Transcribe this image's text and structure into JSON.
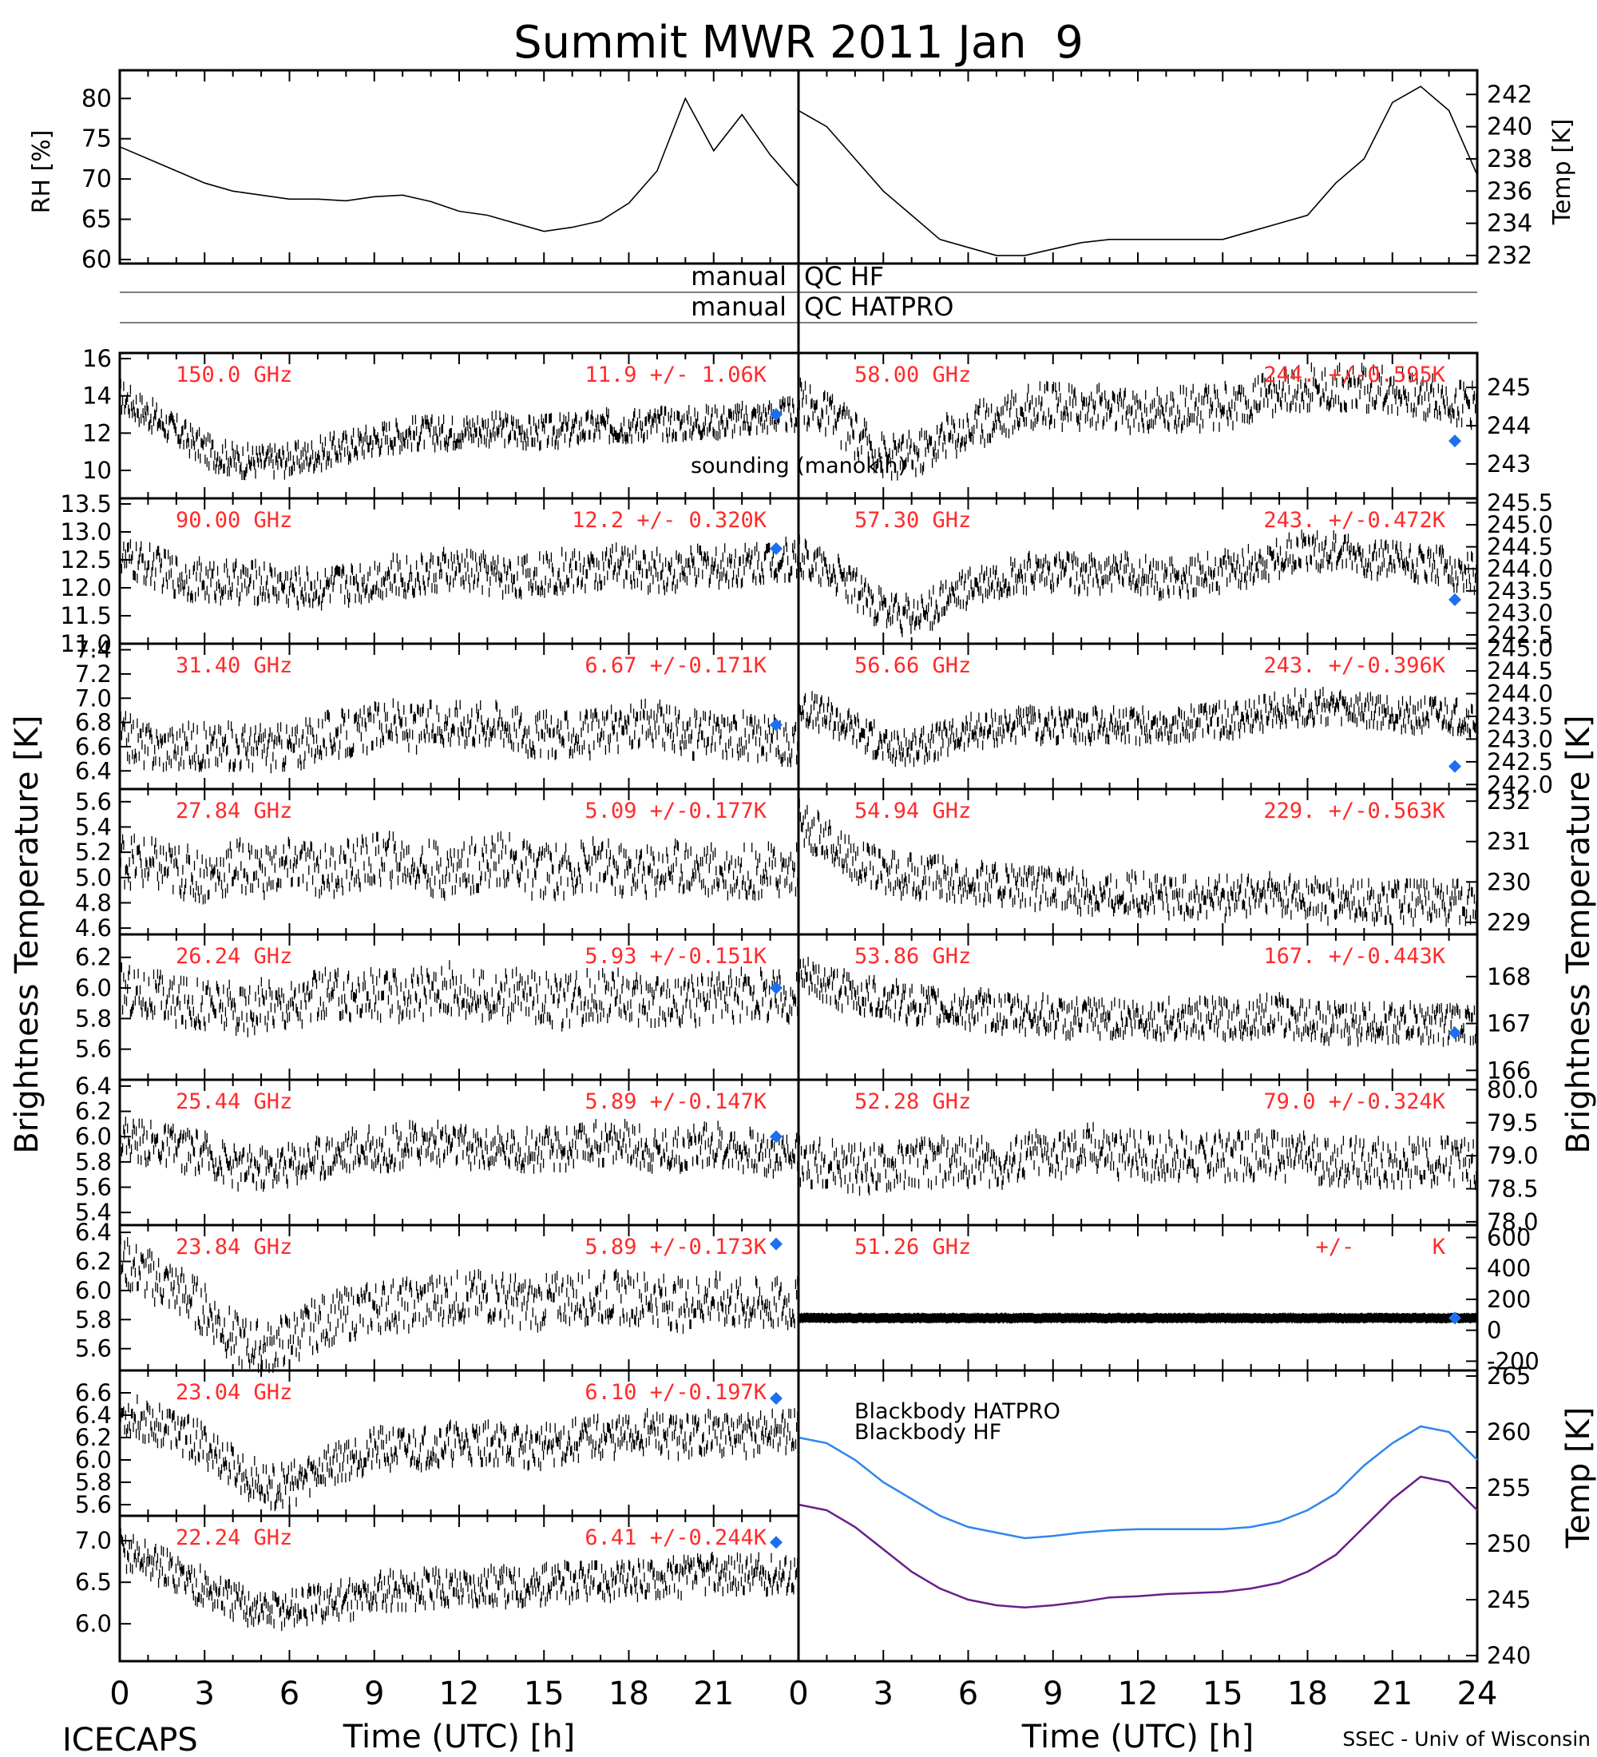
{
  "title": "Summit MWR 2011 Jan  9",
  "footer": {
    "left": "ICECAPS",
    "right": "SSEC - Univ of Wisconsin"
  },
  "xaxis": {
    "label": "Time (UTC) [h]",
    "range": [
      0,
      24
    ],
    "ticks": [
      "0",
      "3",
      "6",
      "9",
      "12",
      "15",
      "18",
      "21"
    ],
    "ticks_right": [
      "0",
      "3",
      "6",
      "9",
      "12",
      "15",
      "18",
      "21",
      "24"
    ]
  },
  "qc": {
    "row1_left": "manual",
    "row1_right": "QC HF",
    "row2_left": "manual",
    "row2_right": "QC HATPRO"
  },
  "ylabels": {
    "left_main": "Brightness Temperature [K]",
    "right_main": "Brightness Temperature [K]",
    "rh": "RH [%]",
    "temp": "Temp [K]",
    "bb_temp": "Temp [K]"
  },
  "colors": {
    "annotation": "#ff2a2a",
    "sounding": "#1e6ef0",
    "blackbody_hatpro": "#2f86ee",
    "blackbody_hf": "#6a1e8a"
  },
  "chart_data": [
    {
      "type": "line",
      "panel": "surface-met",
      "series": [
        {
          "name": "RH",
          "axis": "left",
          "unit": "%",
          "x": [
            0,
            1,
            2,
            3,
            4,
            5,
            6,
            7,
            8,
            9,
            10,
            11,
            12,
            13,
            14,
            15,
            16,
            17,
            18,
            19,
            20,
            21,
            22,
            23,
            24
          ],
          "values": [
            74,
            72.5,
            71,
            69.5,
            68.5,
            68,
            67.5,
            67.5,
            67.3,
            67.8,
            68,
            67.2,
            66,
            65.5,
            64.5,
            63.5,
            64,
            64.8,
            67,
            71,
            80,
            73.5,
            78,
            73,
            69
          ]
        },
        {
          "name": "Temp",
          "axis": "right",
          "unit": "K",
          "x": [
            0,
            1,
            2,
            3,
            4,
            5,
            6,
            7,
            8,
            9,
            10,
            11,
            12,
            13,
            14,
            15,
            16,
            17,
            18,
            19,
            20,
            21,
            22,
            23,
            24
          ],
          "values": [
            241,
            240,
            238,
            236,
            234.5,
            233,
            232.5,
            232,
            232,
            232.4,
            232.8,
            233,
            233,
            233,
            233,
            233,
            233.5,
            234,
            234.5,
            236.5,
            238,
            241.5,
            242.5,
            241,
            237
          ]
        }
      ],
      "yticks_left": [
        "60",
        "65",
        "70",
        "75",
        "80"
      ],
      "yticks_right": [
        "232",
        "234",
        "236",
        "238",
        "240",
        "242"
      ],
      "ylim_left": [
        59.5,
        83.5
      ],
      "ylim_right": [
        231.5,
        243.5
      ]
    },
    {
      "type": "scatter",
      "column": "left",
      "row": 0,
      "freq": "150.0 GHz",
      "stat": "11.9 +/- 1.06K",
      "yticks": [
        "10",
        "12",
        "14",
        "16"
      ],
      "ylim": [
        8.5,
        16.3
      ],
      "profile": [
        14,
        13,
        12,
        11,
        10.5,
        10.5,
        10.6,
        11,
        11.4,
        11.8,
        12,
        12,
        12.2,
        12.2,
        12,
        12.1,
        12.3,
        12.4,
        12.5,
        12.5,
        12.6,
        12.7,
        12.9,
        13
      ],
      "noise": 0.8,
      "sounding": 13
    },
    {
      "type": "scatter",
      "column": "left",
      "row": 1,
      "freq": "90.00 GHz",
      "stat": "12.2 +/- 0.320K",
      "yticks": [
        "11.0",
        "11.5",
        "12.0",
        "12.5",
        "13.0",
        "13.5"
      ],
      "ylim": [
        11.0,
        13.6
      ],
      "profile": [
        12.5,
        12.4,
        12.2,
        12.1,
        12.1,
        12.1,
        12.0,
        12.0,
        12.1,
        12.2,
        12.2,
        12.3,
        12.3,
        12.2,
        12.2,
        12.3,
        12.3,
        12.4,
        12.3,
        12.3,
        12.4,
        12.4,
        12.5,
        12.5
      ],
      "noise": 0.35,
      "sounding": 12.7
    },
    {
      "type": "scatter",
      "column": "left",
      "row": 2,
      "freq": "31.40 GHz",
      "stat": "6.67 +/-0.171K",
      "yticks": [
        "6.4",
        "6.6",
        "6.8",
        "7.0",
        "7.2",
        "7.4"
      ],
      "ylim": [
        6.25,
        7.45
      ],
      "profile": [
        6.7,
        6.6,
        6.6,
        6.6,
        6.6,
        6.6,
        6.6,
        6.7,
        6.7,
        6.8,
        6.75,
        6.8,
        6.8,
        6.8,
        6.7,
        6.7,
        6.7,
        6.75,
        6.8,
        6.7,
        6.7,
        6.7,
        6.65,
        6.65
      ],
      "noise": 0.18,
      "sounding": 6.78
    },
    {
      "type": "scatter",
      "column": "left",
      "row": 3,
      "freq": "27.84 GHz",
      "stat": "5.09 +/-0.177K",
      "yticks": [
        "4.6",
        "4.8",
        "5.0",
        "5.2",
        "5.4",
        "5.6"
      ],
      "ylim": [
        4.55,
        5.7
      ],
      "profile": [
        5.15,
        5.1,
        5.05,
        5.0,
        5.1,
        5.05,
        5.1,
        5.05,
        5.1,
        5.15,
        5.1,
        5.05,
        5.1,
        5.15,
        5.05,
        5.05,
        5.1,
        5.05,
        5.05,
        5.1,
        5.05,
        5.05,
        5.05,
        5.05
      ],
      "noise": 0.2,
      "sounding": null
    },
    {
      "type": "scatter",
      "column": "left",
      "row": 4,
      "freq": "26.24 GHz",
      "stat": "5.93 +/-0.151K",
      "yticks": [
        "5.6",
        "5.8",
        "6.0",
        "6.2"
      ],
      "ylim": [
        5.4,
        6.35
      ],
      "profile": [
        6.0,
        5.95,
        5.9,
        5.9,
        5.85,
        5.9,
        5.9,
        5.95,
        5.95,
        5.95,
        5.95,
        6.0,
        5.95,
        5.95,
        5.95,
        5.9,
        5.95,
        5.95,
        5.9,
        5.9,
        5.95,
        5.95,
        5.95,
        5.95
      ],
      "noise": 0.16,
      "sounding": 6.0
    },
    {
      "type": "scatter",
      "column": "left",
      "row": 5,
      "freq": "25.44 GHz",
      "stat": "5.89 +/-0.147K",
      "yticks": [
        "5.4",
        "5.6",
        "5.8",
        "6.0",
        "6.2",
        "6.4"
      ],
      "ylim": [
        5.3,
        6.45
      ],
      "profile": [
        6.0,
        5.95,
        5.9,
        5.85,
        5.75,
        5.75,
        5.8,
        5.85,
        5.9,
        5.9,
        5.95,
        5.95,
        5.9,
        5.9,
        5.9,
        5.9,
        5.95,
        5.95,
        5.9,
        5.9,
        5.95,
        5.9,
        5.85,
        5.9
      ],
      "noise": 0.16,
      "sounding": 6.0
    },
    {
      "type": "scatter",
      "column": "left",
      "row": 6,
      "freq": "23.84 GHz",
      "stat": "5.89 +/-0.173K",
      "yticks": [
        "5.6",
        "5.8",
        "6.0",
        "6.2",
        "6.4"
      ],
      "ylim": [
        5.45,
        6.45
      ],
      "profile": [
        6.2,
        6.1,
        6.0,
        5.85,
        5.65,
        5.6,
        5.7,
        5.8,
        5.85,
        5.9,
        5.9,
        5.95,
        5.95,
        5.95,
        5.9,
        5.95,
        5.95,
        5.95,
        5.95,
        5.9,
        5.95,
        5.9,
        5.9,
        5.9
      ],
      "noise": 0.17,
      "sounding": 6.32
    },
    {
      "type": "scatter",
      "column": "left",
      "row": 7,
      "freq": "23.04 GHz",
      "stat": "6.10 +/-0.197K",
      "yticks": [
        "5.6",
        "5.8",
        "6.0",
        "6.2",
        "6.4",
        "6.6"
      ],
      "ylim": [
        5.5,
        6.8
      ],
      "profile": [
        6.4,
        6.35,
        6.25,
        6.1,
        5.9,
        5.75,
        5.8,
        5.95,
        6.05,
        6.1,
        6.1,
        6.15,
        6.15,
        6.15,
        6.1,
        6.15,
        6.2,
        6.2,
        6.25,
        6.2,
        6.25,
        6.2,
        6.25,
        6.25
      ],
      "noise": 0.18,
      "sounding": 6.55
    },
    {
      "type": "scatter",
      "column": "left",
      "row": 8,
      "freq": "22.24 GHz",
      "stat": "6.41 +/-0.244K",
      "yticks": [
        "6.0",
        "6.5",
        "7.0"
      ],
      "ylim": [
        5.55,
        7.3
      ],
      "profile": [
        6.9,
        6.75,
        6.6,
        6.4,
        6.25,
        6.15,
        6.2,
        6.25,
        6.3,
        6.4,
        6.4,
        6.45,
        6.45,
        6.45,
        6.45,
        6.5,
        6.5,
        6.5,
        6.55,
        6.55,
        6.6,
        6.6,
        6.6,
        6.6
      ],
      "noise": 0.22,
      "sounding": 6.98
    },
    {
      "type": "scatter",
      "column": "right",
      "row": 0,
      "freq": "58.00 GHz",
      "stat": "244. +/-0.595K",
      "yticks": [
        "243",
        "244",
        "245"
      ],
      "ylim": [
        242.1,
        245.9
      ],
      "profile": [
        244.6,
        244.3,
        243.7,
        243.2,
        243.3,
        243.7,
        244.0,
        244.3,
        244.5,
        244.5,
        244.5,
        244.4,
        244.4,
        244.4,
        244.5,
        244.5,
        244.8,
        245.0,
        245.0,
        245.0,
        244.9,
        244.8,
        244.6,
        244.5
      ],
      "noise": 0.55,
      "sounding": 243.6
    },
    {
      "type": "scatter",
      "column": "right",
      "row": 1,
      "freq": "57.30 GHz",
      "stat": "243. +/-0.472K",
      "yticks": [
        "242.5",
        "243.0",
        "243.5",
        "244.0",
        "244.5",
        "245.0",
        "245.5"
      ],
      "ylim": [
        242.3,
        245.6
      ],
      "profile": [
        244.3,
        244.0,
        243.5,
        243.0,
        242.9,
        243.3,
        243.6,
        243.8,
        243.9,
        243.9,
        243.9,
        243.9,
        243.8,
        243.8,
        243.9,
        244.0,
        244.2,
        244.4,
        244.4,
        244.3,
        244.2,
        244.1,
        244.0,
        243.9
      ],
      "noise": 0.42,
      "sounding": 243.3
    },
    {
      "type": "scatter",
      "column": "right",
      "row": 2,
      "freq": "56.66 GHz",
      "stat": "243. +/-0.396K",
      "yticks": [
        "242.0",
        "242.5",
        "243.0",
        "243.5",
        "244.0",
        "244.5",
        "245.0"
      ],
      "ylim": [
        241.9,
        245.1
      ],
      "profile": [
        243.7,
        243.5,
        243.2,
        242.8,
        242.8,
        243.0,
        243.2,
        243.3,
        243.3,
        243.3,
        243.3,
        243.3,
        243.3,
        243.3,
        243.4,
        243.4,
        243.6,
        243.7,
        243.7,
        243.6,
        243.6,
        243.5,
        243.5,
        243.4
      ],
      "noise": 0.36,
      "sounding": 242.4
    },
    {
      "type": "scatter",
      "column": "right",
      "row": 3,
      "freq": "54.94 GHz",
      "stat": "229. +/-0.563K",
      "yticks": [
        "229",
        "230",
        "231",
        "232"
      ],
      "ylim": [
        228.7,
        232.3
      ],
      "profile": [
        231.5,
        231.0,
        230.5,
        230.2,
        230.1,
        230.1,
        230.0,
        229.9,
        229.8,
        229.8,
        229.7,
        229.7,
        229.7,
        229.6,
        229.6,
        229.6,
        229.7,
        229.6,
        229.5,
        229.5,
        229.5,
        229.5,
        229.5,
        229.5
      ],
      "noise": 0.5,
      "sounding": null
    },
    {
      "type": "scatter",
      "column": "right",
      "row": 4,
      "freq": "53.86 GHz",
      "stat": "167. +/-0.443K",
      "yticks": [
        "166",
        "167",
        "168"
      ],
      "ylim": [
        165.8,
        168.9
      ],
      "profile": [
        168.0,
        167.8,
        167.6,
        167.5,
        167.4,
        167.3,
        167.3,
        167.2,
        167.2,
        167.1,
        167.1,
        167.1,
        167.1,
        167.1,
        167.1,
        167.1,
        167.2,
        167.1,
        167.0,
        167.0,
        167.0,
        167.0,
        167.0,
        167.0
      ],
      "noise": 0.4,
      "sounding": 166.8
    },
    {
      "type": "scatter",
      "column": "right",
      "row": 5,
      "freq": "52.28 GHz",
      "stat": "79.0 +/-0.324K",
      "yticks": [
        "78.0",
        "78.5",
        "79.0",
        "79.5",
        "80.0"
      ],
      "ylim": [
        77.95,
        80.15
      ],
      "profile": [
        78.9,
        78.9,
        78.8,
        78.8,
        78.9,
        78.9,
        78.9,
        78.9,
        79.0,
        79.0,
        79.1,
        79.0,
        79.0,
        79.0,
        79.0,
        79.0,
        79.0,
        79.0,
        78.9,
        78.9,
        78.9,
        78.9,
        78.9,
        78.9
      ],
      "noise": 0.35,
      "sounding": null
    },
    {
      "type": "scatter",
      "column": "right",
      "row": 6,
      "freq": "51.26 GHz",
      "stat": "+/-      K",
      "yticks": [
        "-200",
        "0",
        "200",
        "400",
        "600"
      ],
      "ylim": [
        -260,
        680
      ],
      "profile": [
        79,
        79,
        79,
        79,
        79,
        79,
        79,
        79,
        79,
        79,
        79,
        79,
        79,
        79,
        79,
        79,
        79,
        79,
        79,
        79,
        79,
        79,
        79,
        79
      ],
      "noise": 4,
      "sounding": 79
    },
    {
      "type": "line",
      "panel": "blackbody",
      "series": [
        {
          "name": "Blackbody HATPRO",
          "x": [
            0,
            1,
            2,
            3,
            4,
            5,
            6,
            7,
            8,
            9,
            10,
            11,
            12,
            13,
            14,
            15,
            16,
            17,
            18,
            19,
            20,
            21,
            22,
            23,
            24
          ],
          "values": [
            259.5,
            259,
            257.5,
            255.5,
            254,
            252.5,
            251.5,
            251,
            250.5,
            250.7,
            251,
            251.2,
            251.3,
            251.3,
            251.3,
            251.3,
            251.5,
            252,
            253,
            254.5,
            257,
            259,
            260.5,
            260,
            257.5
          ]
        },
        {
          "name": "Blackbody HF",
          "x": [
            0,
            1,
            2,
            3,
            4,
            5,
            6,
            7,
            8,
            9,
            10,
            11,
            12,
            13,
            14,
            15,
            16,
            17,
            18,
            19,
            20,
            21,
            22,
            23,
            24
          ],
          "values": [
            253.5,
            253,
            251.5,
            249.5,
            247.5,
            246,
            245,
            244.5,
            244.3,
            244.5,
            244.8,
            245.2,
            245.3,
            245.5,
            245.6,
            245.7,
            246,
            246.5,
            247.5,
            249,
            251.5,
            254,
            256,
            255.5,
            253
          ]
        }
      ],
      "yticks": [
        "240",
        "245",
        "250",
        "255",
        "260",
        "265"
      ],
      "ylim": [
        239.5,
        265.5
      ]
    }
  ]
}
